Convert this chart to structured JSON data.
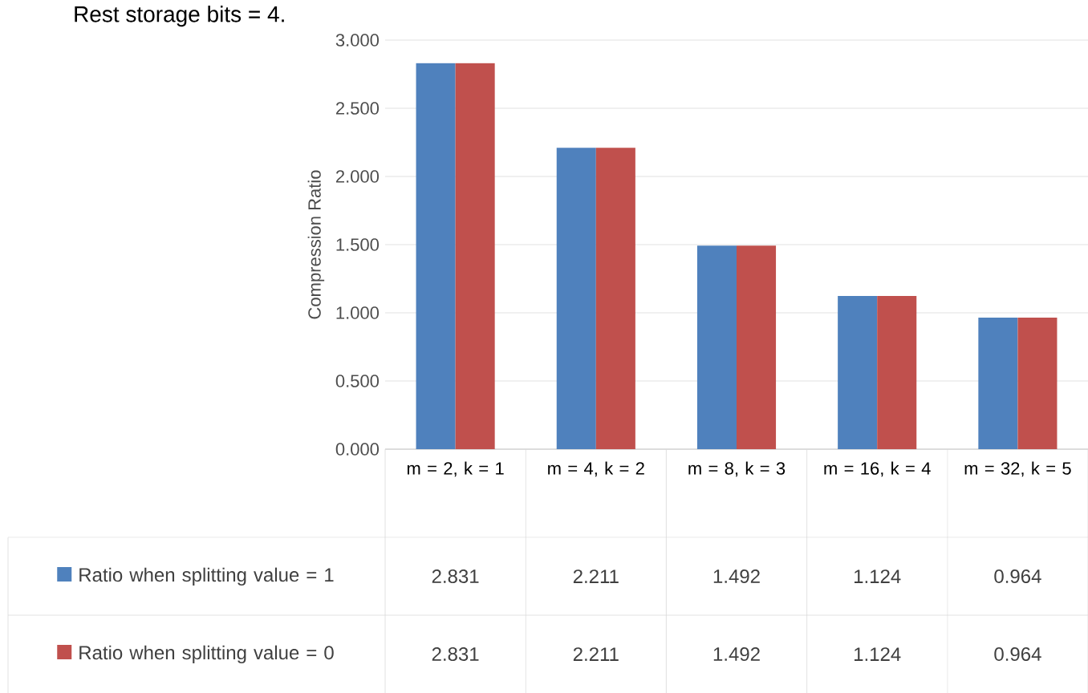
{
  "chart_data": {
    "type": "bar",
    "title": "Rest storage bits = 4.",
    "ylabel": "Compression Ratio",
    "categories": [
      "m = 2, k = 1",
      "m = 4, k = 2",
      "m = 8, k = 3",
      "m = 16, k = 4",
      "m = 32, k = 5"
    ],
    "series": [
      {
        "name": "Ratio when splitting value = 1",
        "color": "#4f81bd",
        "values": [
          2.831,
          2.211,
          1.492,
          1.124,
          0.964
        ]
      },
      {
        "name": "Ratio when splitting value = 0",
        "color": "#c0504d",
        "values": [
          2.831,
          2.211,
          1.492,
          1.124,
          0.964
        ]
      }
    ],
    "ylim": [
      0,
      3
    ],
    "yticks": [
      {
        "value": 0,
        "label": "0.000"
      },
      {
        "value": 0.5,
        "label": "0.500"
      },
      {
        "value": 1,
        "label": "1.000"
      },
      {
        "value": 1.5,
        "label": "1.500"
      },
      {
        "value": 2,
        "label": "2.000"
      },
      {
        "value": 2.5,
        "label": "2.500"
      },
      {
        "value": 3,
        "label": "3.000"
      }
    ],
    "grid": "y",
    "legend": "bottom",
    "data_labels": true
  }
}
